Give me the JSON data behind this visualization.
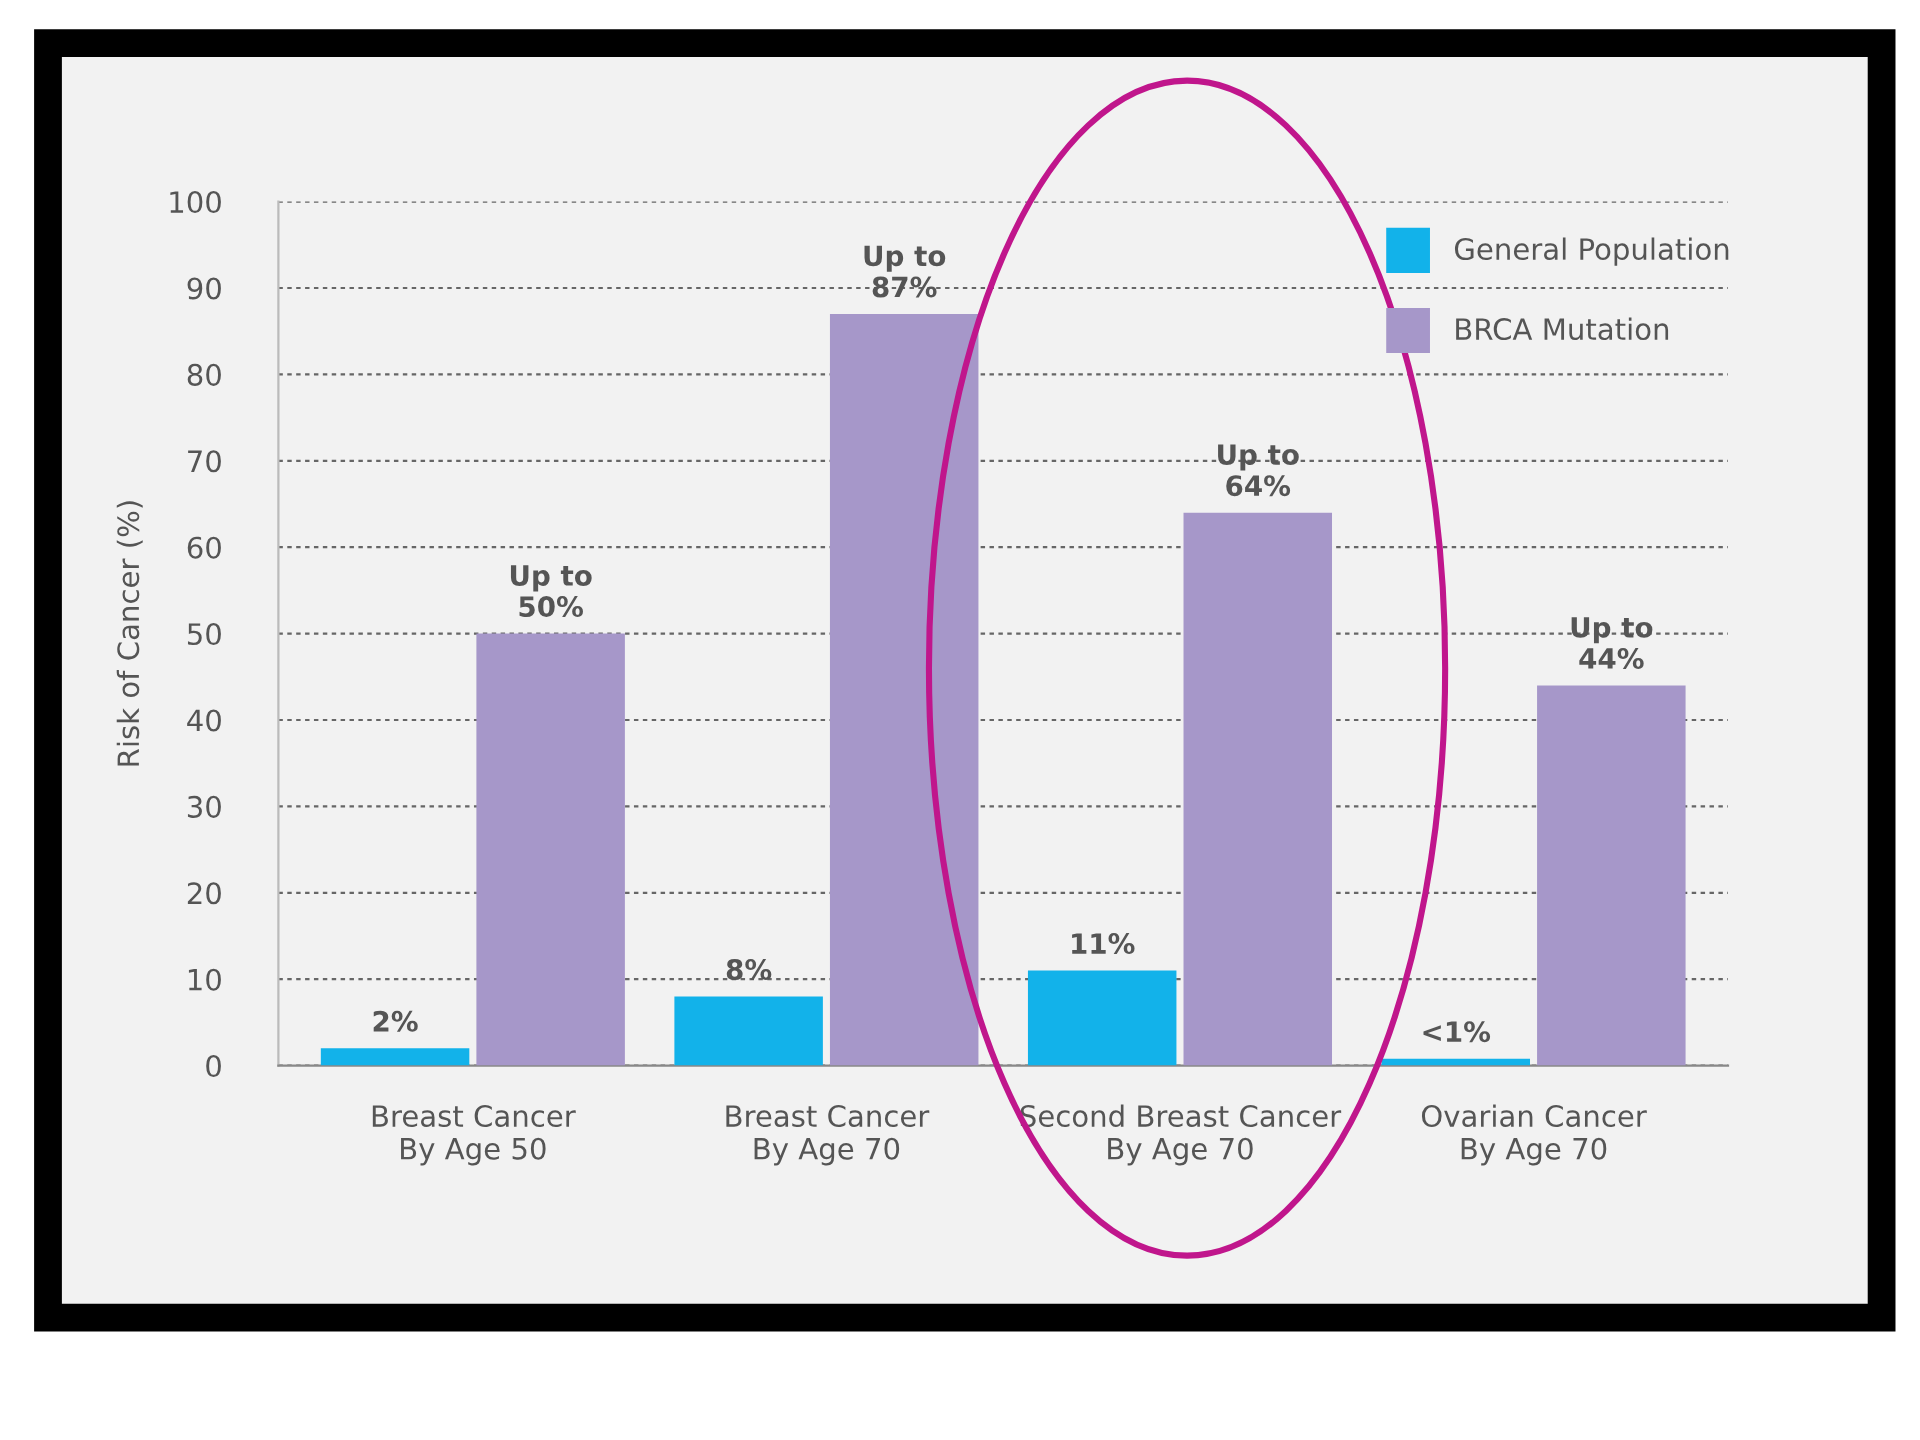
{
  "chart_data": {
    "type": "bar",
    "ylabel": "Risk of Cancer (%)",
    "categories": [
      "Breast Cancer\nBy Age 50",
      "Breast Cancer\nBy Age 70",
      "Second Breast Cancer\nBy Age 70",
      "Ovarian Cancer\nBy Age 70"
    ],
    "series": [
      {
        "name": "General Population",
        "color": "#12b2ea",
        "values": [
          2,
          8,
          11,
          0.8
        ],
        "value_labels": [
          "2%",
          "8%",
          "11%",
          "<1%"
        ]
      },
      {
        "name": "BRCA Mutation",
        "color": "#a697c9",
        "values": [
          50,
          87,
          64,
          44
        ],
        "value_labels": [
          "Up to\n50%",
          "Up to\n87%",
          "Up to\n64%",
          "Up to\n44%"
        ]
      }
    ],
    "ylim": [
      0,
      100
    ],
    "yticks": [
      0,
      10,
      20,
      30,
      40,
      50,
      60,
      70,
      80,
      90,
      100
    ],
    "grid": "y",
    "legend": "top right"
  }
}
